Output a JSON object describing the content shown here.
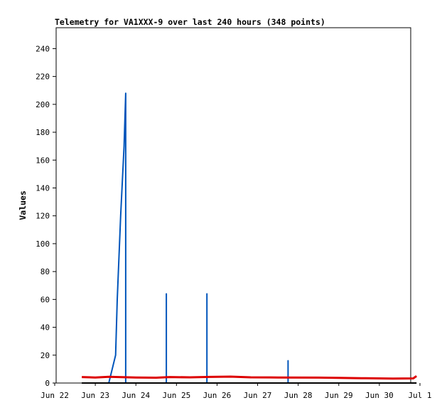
{
  "chart_data": {
    "type": "line",
    "title": "Telemetry for VA1XXX-9 over last 240 hours (348 points)",
    "xlabel": "",
    "ylabel": "Values",
    "x_range": [
      "Jun 22",
      "Jul 1"
    ],
    "x_ticks": [
      "Jun 22",
      "Jun 23",
      "Jun 24",
      "Jun 25",
      "Jun 26",
      "Jun 27",
      "Jun 28",
      "Jun 29",
      "Jun 30",
      "Jul 1"
    ],
    "ylim": [
      0,
      255
    ],
    "y_ticks": [
      0,
      20,
      40,
      60,
      80,
      100,
      120,
      140,
      160,
      180,
      200,
      220,
      240
    ],
    "grid": false,
    "legend": "none",
    "series": [
      {
        "color": "#0055bb",
        "points": [
          {
            "x": "2023-06-23 08:00",
            "y": 0
          },
          {
            "x": "2023-06-23 12:00",
            "y": 20
          },
          {
            "x": "2023-06-23 13:00",
            "y": 60
          },
          {
            "x": "2023-06-23 15:00",
            "y": 120
          },
          {
            "x": "2023-06-23 17:00",
            "y": 170
          },
          {
            "x": "2023-06-23 18:00",
            "y": 208
          },
          {
            "x": "2023-06-23 18:00",
            "y": 0
          },
          {
            "x": "2023-06-24 18:00",
            "y": 0
          },
          {
            "x": "2023-06-24 18:00",
            "y": 64
          },
          {
            "x": "2023-06-24 18:00",
            "y": 0
          },
          {
            "x": "2023-06-25 18:00",
            "y": 0
          },
          {
            "x": "2023-06-25 18:00",
            "y": 64
          },
          {
            "x": "2023-06-25 18:00",
            "y": 0
          },
          {
            "x": "2023-06-27 18:00",
            "y": 0
          },
          {
            "x": "2023-06-27 18:00",
            "y": 16
          },
          {
            "x": "2023-06-27 18:00",
            "y": 0
          }
        ]
      },
      {
        "color": "#dd0000",
        "points": [
          {
            "x": "2023-06-22 16:00",
            "y": 4.3
          },
          {
            "x": "2023-06-23 00:00",
            "y": 4.0
          },
          {
            "x": "2023-06-23 08:00",
            "y": 4.5
          },
          {
            "x": "2023-06-23 16:00",
            "y": 4.2
          },
          {
            "x": "2023-06-24 00:00",
            "y": 4.0
          },
          {
            "x": "2023-06-24 12:00",
            "y": 3.8
          },
          {
            "x": "2023-06-24 20:00",
            "y": 4.3
          },
          {
            "x": "2023-06-25 08:00",
            "y": 4.1
          },
          {
            "x": "2023-06-25 20:00",
            "y": 4.4
          },
          {
            "x": "2023-06-26 08:00",
            "y": 4.6
          },
          {
            "x": "2023-06-26 20:00",
            "y": 4.1
          },
          {
            "x": "2023-06-27 12:00",
            "y": 4.0
          },
          {
            "x": "2023-06-28 12:00",
            "y": 3.9
          },
          {
            "x": "2023-06-29 00:00",
            "y": 3.7
          },
          {
            "x": "2023-06-29 16:00",
            "y": 3.4
          },
          {
            "x": "2023-06-30 08:00",
            "y": 3.2
          },
          {
            "x": "2023-06-30 20:00",
            "y": 3.3
          },
          {
            "x": "2023-06-30 22:00",
            "y": 5.0
          }
        ]
      },
      {
        "color": "#000000",
        "points": [
          {
            "x": "2023-06-22 16:00",
            "y": 0
          },
          {
            "x": "2023-06-30 22:00",
            "y": 0
          }
        ]
      }
    ]
  }
}
